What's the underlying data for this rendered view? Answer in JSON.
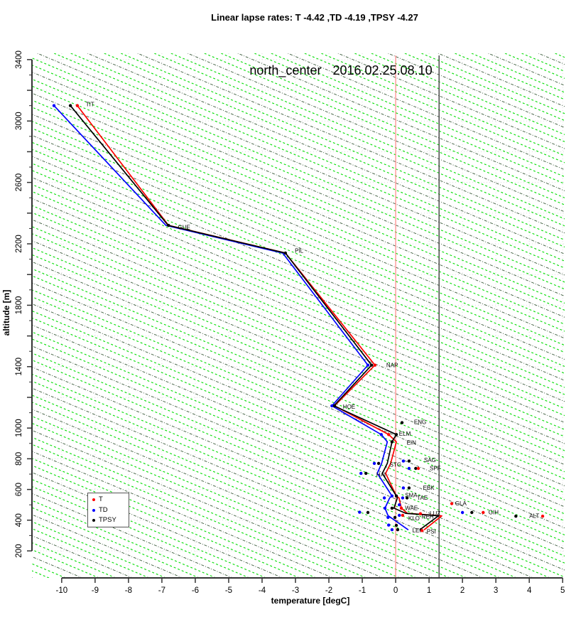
{
  "main_title": "Linear lapse rates: T -4.42 ,TD -4.19 ,TPSY -4.27",
  "chart_data": {
    "type": "scatter",
    "title": "Linear lapse rates: T -4.42 ,TD -4.19 ,TPSY -4.27",
    "region_label": "north_center",
    "datetime_label": "2016.02.25.08.10",
    "xlabel": "temperature [degC]",
    "ylabel": "altitude [m]",
    "xlim": [
      -10.89,
      5.06
    ],
    "ylim": [
      24,
      3441
    ],
    "x_ticks": [
      -10,
      -9,
      -8,
      -7,
      -6,
      -5,
      -4,
      -3,
      -2,
      -1,
      0,
      1,
      2,
      3,
      4,
      5
    ],
    "y_ticks_labeled": [
      200,
      400,
      600,
      800,
      1000,
      1400,
      1800,
      2200,
      2600,
      3000,
      3400
    ],
    "y_tick_major_step": 200,
    "y_tick_minor_step": 100,
    "grid": {
      "x_step": 1,
      "y_step": 200,
      "color": "#dcdcdc"
    },
    "lapse_guides": {
      "step_degC": 0.5,
      "m_per_degC": 91.5,
      "color_bright": "#00dd00",
      "color_dark": "#3d5c3d"
    },
    "reference_lines": [
      {
        "axis": "x",
        "value": 0,
        "color": "#ff8585",
        "width": 1.2
      },
      {
        "axis": "x",
        "value": 1.3,
        "color": "#4d4d4d",
        "width": 1.5
      }
    ],
    "linear_lapse_rates": {
      "T": -4.42,
      "TD": -4.19,
      "TPSY": -4.27
    },
    "legend": {
      "entries": [
        {
          "label": "T",
          "color": "#ff0000"
        },
        {
          "label": "TD",
          "color": "#0000ff"
        },
        {
          "label": "TPSY",
          "color": "#000000"
        }
      ]
    },
    "series": [
      {
        "name": "T",
        "color": "#ff0000",
        "points": [
          [
            -9.53,
            3100
          ],
          [
            -6.8,
            2320
          ],
          [
            -3.3,
            2140
          ],
          [
            -0.62,
            1410
          ],
          [
            -1.83,
            1145
          ],
          [
            -0.21,
            958
          ],
          [
            0.02,
            910
          ],
          [
            -0.15,
            770
          ],
          [
            -0.3,
            705
          ],
          [
            0.02,
            558
          ],
          [
            0.1,
            545
          ],
          [
            0.17,
            478
          ],
          [
            0.35,
            445
          ],
          [
            1.38,
            428
          ],
          [
            0.85,
            337
          ]
        ]
      },
      {
        "name": "TD",
        "color": "#0000ff",
        "points": [
          [
            -10.23,
            3100
          ],
          [
            -6.88,
            2320
          ],
          [
            -3.38,
            2140
          ],
          [
            -0.83,
            1410
          ],
          [
            -1.91,
            1145
          ],
          [
            -0.43,
            958
          ],
          [
            -0.25,
            910
          ],
          [
            -0.42,
            770
          ],
          [
            -0.55,
            705
          ],
          [
            -0.11,
            558
          ],
          [
            -0.18,
            545
          ],
          [
            -0.32,
            478
          ],
          [
            -0.23,
            430
          ],
          [
            0.38,
            337
          ]
        ]
      },
      {
        "name": "TPSY",
        "color": "#000000",
        "points": [
          [
            -9.74,
            3100
          ],
          [
            -6.81,
            2320
          ],
          [
            -3.3,
            2140
          ],
          [
            -0.72,
            1410
          ],
          [
            -1.85,
            1145
          ],
          [
            0.02,
            958
          ],
          [
            -0.11,
            910
          ],
          [
            -0.25,
            770
          ],
          [
            -0.4,
            705
          ],
          [
            0.02,
            558
          ],
          [
            0.05,
            545
          ],
          [
            -0.05,
            478
          ],
          [
            0.3,
            445
          ],
          [
            1.28,
            428
          ],
          [
            0.72,
            337
          ]
        ]
      }
    ],
    "stations": [
      {
        "code": "TIT",
        "alt": 3100,
        "label_t": -9.28,
        "label_alt": 3110,
        "dots": [
          [
            "T",
            -9.53
          ],
          [
            "TD",
            -10.23
          ],
          [
            "TPSY",
            -9.74
          ]
        ]
      },
      {
        "code": "GUE",
        "alt": 2320,
        "label_t": -6.52,
        "label_alt": 2310,
        "dots": [
          [
            "TPSY",
            -6.8
          ]
        ]
      },
      {
        "code": "PIL",
        "alt": 2140,
        "label_t": -3.02,
        "label_alt": 2155,
        "dots": [
          [
            "TPSY",
            -3.3
          ]
        ]
      },
      {
        "code": "NAP",
        "alt": 1410,
        "label_t": -0.28,
        "label_alt": 1410,
        "dots": [
          [
            "T",
            -0.62
          ],
          [
            "TD",
            -0.83
          ],
          [
            "TPSY",
            -0.72
          ]
        ]
      },
      {
        "code": "HOE",
        "alt": 1145,
        "label_t": -1.58,
        "label_alt": 1140,
        "dots": [
          [
            "TD",
            -1.91
          ],
          [
            "TPSY",
            -1.83
          ]
        ]
      },
      {
        "code": "ENG",
        "alt": 1035,
        "label_t": 0.55,
        "label_alt": 1040,
        "dots": [
          [
            "TPSY",
            0.19
          ]
        ]
      },
      {
        "code": "ELM",
        "alt": 958,
        "label_t": 0.1,
        "label_alt": 965,
        "dots": [
          [
            "T",
            -0.21
          ],
          [
            "TD",
            -0.43
          ],
          [
            "TPSY",
            0.02
          ]
        ]
      },
      {
        "code": "EIN",
        "alt": 910,
        "label_t": 0.33,
        "label_alt": 905,
        "dots": [
          [
            "TPSY",
            -0.11
          ]
        ]
      },
      {
        "code": "SAG",
        "alt": 785,
        "label_t": 0.85,
        "label_alt": 792,
        "dots": [
          [
            "TD",
            0.23
          ],
          [
            "TPSY",
            0.4
          ]
        ]
      },
      {
        "code": "SPF",
        "alt": 737,
        "label_t": 1.02,
        "label_alt": 740,
        "dots": [
          [
            "TD",
            0.4
          ],
          [
            "TPSY",
            0.6
          ],
          [
            "T",
            0.68
          ]
        ]
      },
      {
        "code": "STG",
        "alt": 770,
        "label_t": -0.18,
        "label_alt": 763,
        "dots": [
          [
            "TD",
            -0.64
          ],
          [
            "TPSY",
            -0.51
          ]
        ]
      },
      {
        "code": "HAI",
        "alt": 705,
        "label_t": -0.58,
        "label_alt": 698,
        "dots": [
          [
            "TD",
            -1.04
          ],
          [
            "TPSY",
            -0.89
          ]
        ]
      },
      {
        "code": "EBK",
        "alt": 610,
        "label_t": 0.82,
        "label_alt": 612,
        "dots": [
          [
            "TD",
            0.23
          ],
          [
            "TPSY",
            0.4
          ]
        ]
      },
      {
        "code": "SMA",
        "alt": 558,
        "label_t": 0.28,
        "label_alt": 564,
        "dots": [
          [
            "TD",
            -0.11
          ],
          [
            "TPSY",
            0.02
          ]
        ]
      },
      {
        "code": "TAE",
        "alt": 545,
        "label_t": 0.64,
        "label_alt": 548,
        "dots": [
          [
            "TD",
            0.21
          ],
          [
            "TPSY",
            0.34
          ]
        ]
      },
      {
        "code": "WAE",
        "alt": 478,
        "label_t": 0.28,
        "label_alt": 480,
        "dots": [
          [
            "TD",
            -0.32
          ],
          [
            "TPSY",
            -0.11
          ],
          [
            "T",
            0.17
          ]
        ]
      },
      {
        "code": "KLO",
        "alt": 418,
        "label_t": 0.38,
        "label_alt": 412,
        "dots": [
          [
            "TD",
            -0.23
          ],
          [
            "TPSY",
            -0.02
          ]
        ]
      },
      {
        "code": "REH",
        "alt": 432,
        "label_t": 0.78,
        "label_alt": 424,
        "dots": [
          [
            "TD",
            0.11
          ],
          [
            "T",
            0.21
          ]
        ]
      },
      {
        "code": "LUZ",
        "alt": 442,
        "label_t": 1.02,
        "label_alt": 446,
        "dots": [
          [
            "T",
            0.74
          ]
        ]
      },
      {
        "code": "GLA",
        "alt": 508,
        "label_t": 1.78,
        "label_alt": 510,
        "dots": [
          [
            "T",
            1.68
          ]
        ]
      },
      {
        "code": "GIH",
        "alt": 450,
        "label_t": 2.78,
        "label_alt": 452,
        "dots": [
          [
            "TD",
            2.0
          ],
          [
            "TPSY",
            2.28
          ],
          [
            "T",
            2.62
          ]
        ]
      },
      {
        "code": "ALT",
        "alt": 426,
        "label_t": 4.0,
        "label_alt": 428,
        "dots": [
          [
            "TPSY",
            3.6
          ],
          [
            "T",
            4.4
          ]
        ]
      },
      {
        "code": "LEI",
        "alt": 338,
        "label_t": 0.5,
        "label_alt": 334,
        "dots": [
          [
            "TD",
            -0.11
          ],
          [
            "TPSY",
            0.06
          ]
        ]
      },
      {
        "code": "PSI",
        "alt": 332,
        "label_t": 0.93,
        "label_alt": 328,
        "dots": [
          [
            "T",
            0.79
          ]
        ]
      }
    ],
    "extra_dots": [
      [
        "TD",
        -1.08,
        452
      ],
      [
        "TPSY",
        -0.83,
        450
      ],
      [
        "TD",
        0.11,
        500
      ],
      [
        "TD",
        -0.21,
        368
      ],
      [
        "TPSY",
        0.02,
        366
      ],
      [
        "TD",
        -0.34,
        545
      ]
    ]
  }
}
